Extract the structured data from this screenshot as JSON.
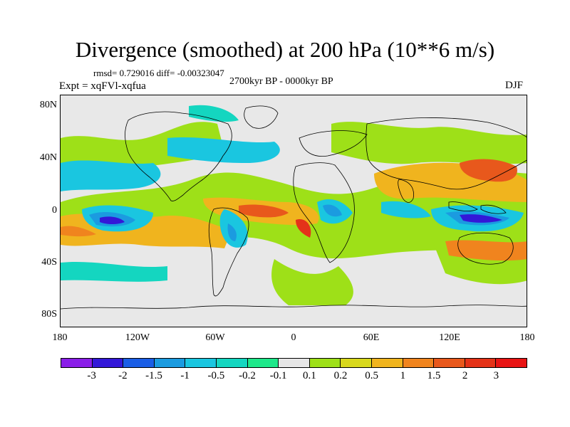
{
  "title": "Divergence (smoothed) at 200 hPa (10**6 m/s)",
  "stats": "rmsd= 0.729016 diff= -0.00323047",
  "subtitle": "2700kyr BP - 0000kyr BP",
  "experiment": "Expt = xqFVl-xqfua",
  "season": "DJF",
  "lat_labels": [
    "80N",
    "40N",
    "0",
    "40S",
    "80S"
  ],
  "lon_labels": [
    "180",
    "120W",
    "60W",
    "0",
    "60E",
    "120E",
    "180"
  ],
  "legend": {
    "labels": [
      "-3",
      "-2",
      "-1.5",
      "-1",
      "-0.5",
      "-0.2",
      "-0.1",
      "0.1",
      "0.2",
      "0.5",
      "1",
      "1.5",
      "2",
      "3"
    ],
    "colors": [
      "#8a1ee8",
      "#3318d8",
      "#1a5ee6",
      "#1b9be0",
      "#1ac6e0",
      "#14d6c0",
      "#1ee88a",
      "#e6e6e6",
      "#9ee018",
      "#d8d81c",
      "#f0b41e",
      "#f0841e",
      "#e8581c",
      "#e43218",
      "#e81414"
    ]
  }
}
